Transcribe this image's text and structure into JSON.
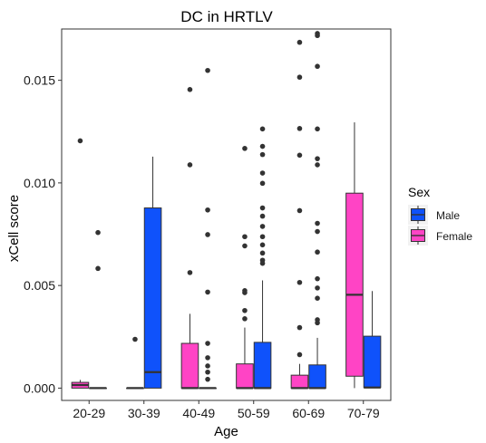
{
  "chart_data": {
    "type": "boxplot",
    "title": "DC in HRTLV",
    "xlabel": "Age",
    "ylabel": "xCell score",
    "categories": [
      "20-29",
      "30-39",
      "40-49",
      "50-59",
      "60-69",
      "70-79"
    ],
    "ylim": [
      -0.0006,
      0.0175
    ],
    "yticks": [
      0.0,
      0.005,
      0.01,
      0.015
    ],
    "ytick_labels": [
      "0.000",
      "0.005",
      "0.010",
      "0.015"
    ],
    "grid": false,
    "legend": {
      "title": "Sex",
      "position": "right",
      "entries": [
        {
          "label": "Male",
          "color": "#0f52fb"
        },
        {
          "label": "Female",
          "color": "#ff44c5"
        }
      ]
    },
    "series": [
      {
        "name": "Female",
        "color": "#ff44c5",
        "boxes": [
          {
            "category": "20-29",
            "min": 0,
            "q1": 0,
            "median": 0.00015,
            "q3": 0.00028,
            "max": 0.0004,
            "outliers": [
              0.01205
            ]
          },
          {
            "category": "30-39",
            "min": 0,
            "q1": 0,
            "median": 0,
            "q3": 0,
            "max": 0,
            "outliers": [
              0.00238
            ]
          },
          {
            "category": "40-49",
            "min": 0,
            "q1": 0,
            "median": 0,
            "q3": 0.00218,
            "max": 0.00362,
            "outliers": [
              0.01455,
              0.01088,
              0.00563
            ]
          },
          {
            "category": "50-59",
            "min": 0,
            "q1": 0,
            "median": 0,
            "q3": 0.00118,
            "max": 0.00295,
            "outliers": [
              0.01168,
              0.00738,
              0.00693,
              0.00475,
              0.00465,
              0.00378,
              0.00338
            ]
          },
          {
            "category": "60-69",
            "min": 0,
            "q1": 0,
            "median": 0,
            "q3": 0.00063,
            "max": 0.00118,
            "outliers": [
              0.01685,
              0.01515,
              0.01265,
              0.01135,
              0.00865,
              0.00515,
              0.00295,
              0.00163
            ]
          },
          {
            "category": "70-79",
            "min": 0.0,
            "q1": 0.00058,
            "median": 0.00455,
            "q3": 0.0095,
            "max": 0.01295,
            "outliers": []
          }
        ]
      },
      {
        "name": "Male",
        "color": "#0f52fb",
        "boxes": [
          {
            "category": "20-29",
            "min": 0,
            "q1": 0,
            "median": 0,
            "q3": 0,
            "max": 0,
            "outliers": [
              0.00758,
              0.00583
            ]
          },
          {
            "category": "30-39",
            "min": 0,
            "q1": 0,
            "median": 0.00078,
            "q3": 0.00878,
            "max": 0.01128,
            "outliers": []
          },
          {
            "category": "40-49",
            "min": 0,
            "q1": 0,
            "median": 0,
            "q3": 0,
            "max": 0,
            "outliers": [
              0.01548,
              0.00868,
              0.00748,
              0.00468,
              0.00218,
              0.00148,
              0.00108,
              0.00078,
              0.00043
            ]
          },
          {
            "category": "50-59",
            "min": 0,
            "q1": 0,
            "median": 0,
            "q3": 0.00223,
            "max": 0.00525,
            "outliers": [
              0.01263,
              0.01178,
              0.01138,
              0.01048,
              0.00998,
              0.00878,
              0.00838,
              0.00788,
              0.00738,
              0.00698,
              0.00658,
              0.00623,
              0.00608
            ]
          },
          {
            "category": "60-69",
            "min": 0,
            "q1": 0,
            "median": 0,
            "q3": 0.00113,
            "max": 0.00245,
            "outliers": [
              0.01728,
              0.01718,
              0.01568,
              0.01263,
              0.01118,
              0.01088,
              0.00803,
              0.00763,
              0.00663,
              0.00533,
              0.00488,
              0.00438,
              0.00333,
              0.00318
            ]
          },
          {
            "category": "70-79",
            "min": 0,
            "q1": 3e-05,
            "median": 3e-05,
            "q3": 0.00253,
            "max": 0.00473,
            "outliers": []
          }
        ]
      }
    ]
  }
}
